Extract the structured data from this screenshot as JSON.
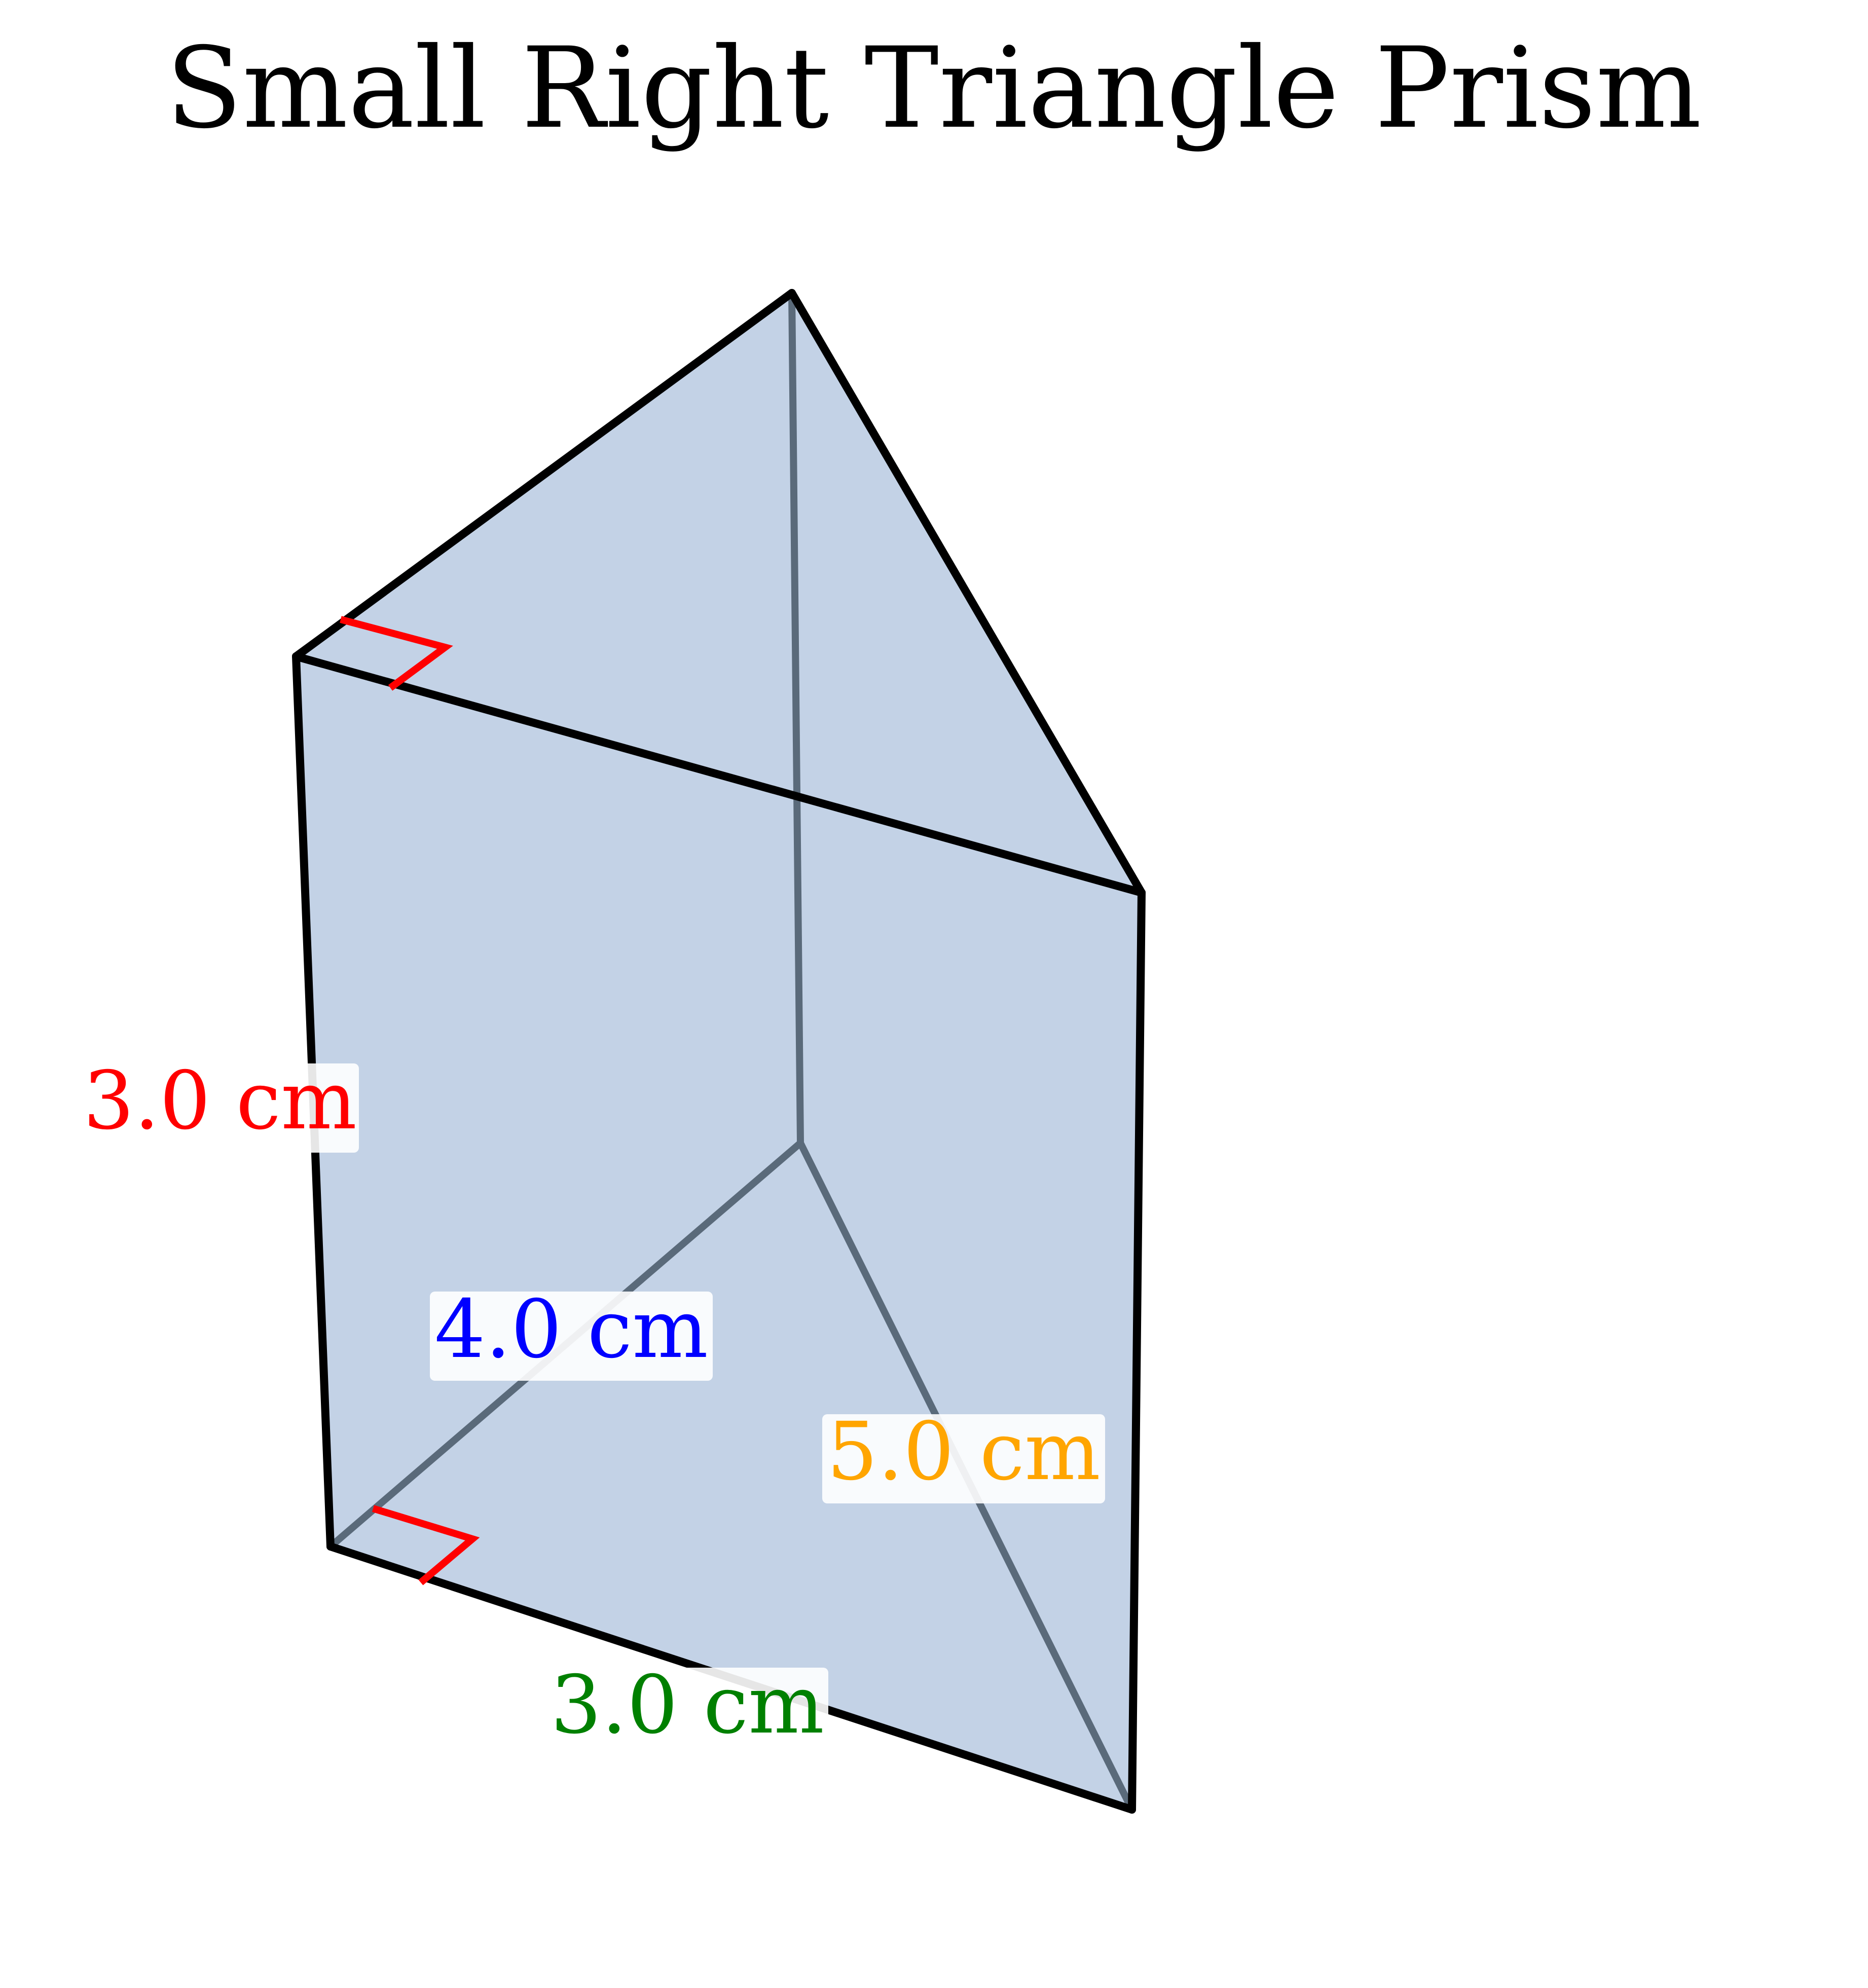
{
  "title": "Small Right Triangle Prism",
  "colors": {
    "face_fill": "#b0c4de",
    "edge": "#000000",
    "hidden_edge": "#5a6a7a",
    "right_angle_marker": "#ff0000",
    "label_background": "#ffffff"
  },
  "labels": {
    "height": {
      "text": "3.0 cm",
      "color": "#ff0000"
    },
    "leg_a": {
      "text": "4.0 cm",
      "color": "#0000ff"
    },
    "hypotenuse": {
      "text": "5.0 cm",
      "color": "#ffa500"
    },
    "leg_b": {
      "text": "3.0 cm",
      "color": "#008000"
    }
  }
}
